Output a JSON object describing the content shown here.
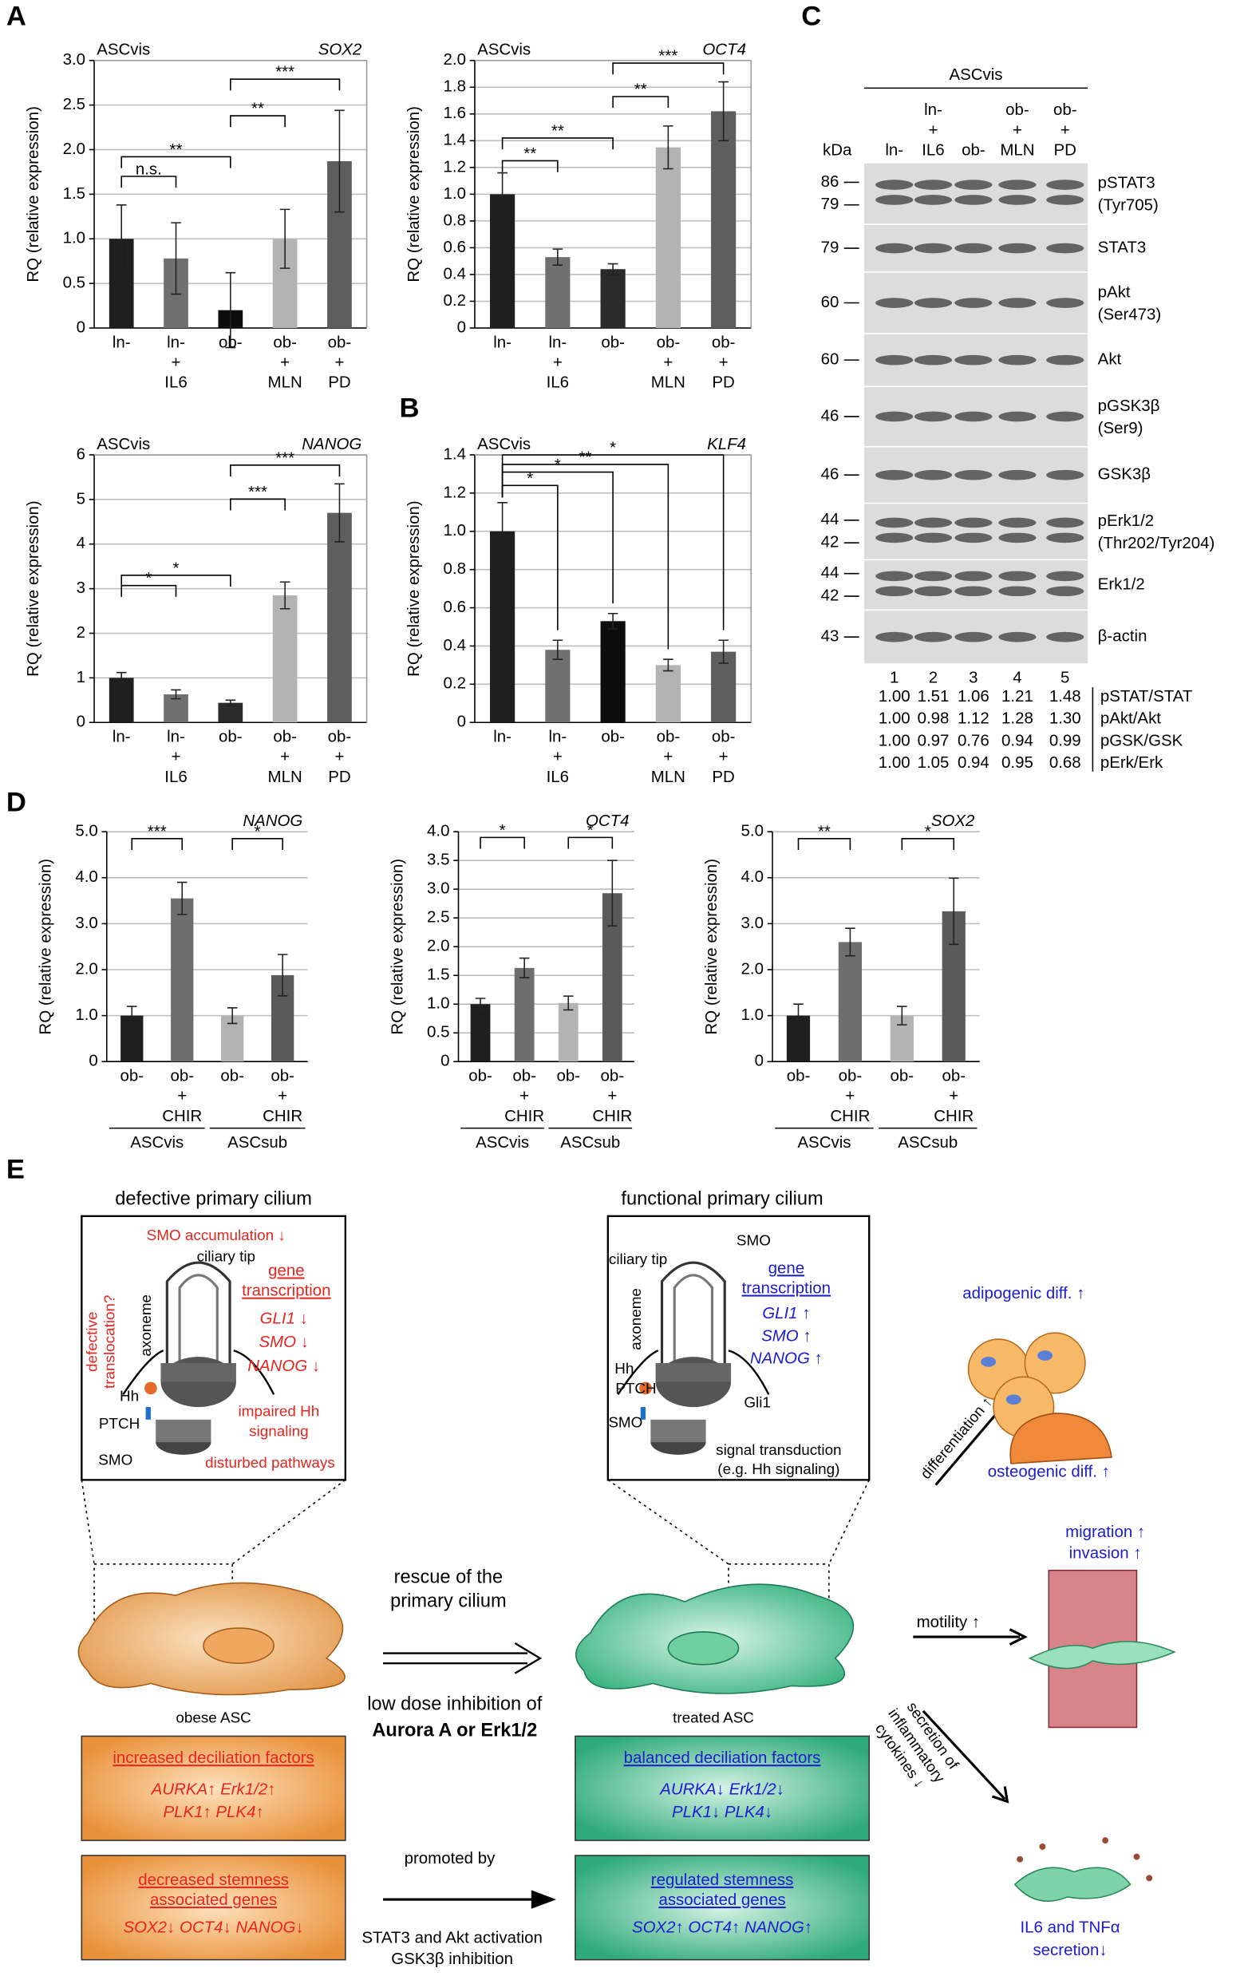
{
  "panel_labels": [
    "A",
    "B",
    "C",
    "D",
    "E"
  ],
  "chart_data": [
    {
      "type": "bar",
      "label": "ASCvis",
      "title": "SOX2",
      "y_label": "RQ (relative expression)",
      "categories": [
        [
          "ln-"
        ],
        [
          "ln-",
          "+",
          "IL6"
        ],
        [
          "ob-"
        ],
        [
          "ob-",
          "+",
          "MLN"
        ],
        [
          "ob-",
          "+",
          "PD"
        ]
      ],
      "values": [
        1.0,
        0.78,
        0.2,
        1.0,
        1.87
      ],
      "errors": [
        0.38,
        0.4,
        0.42,
        0.33,
        0.57
      ],
      "colors": [
        "#1f1f1f",
        "#707070",
        "#0d0d0d",
        "#b3b3b3",
        "#5e5e5e"
      ],
      "ylim": [
        0,
        3
      ],
      "yticks": [
        0,
        0.5,
        {
          "value": 1,
          "label": "1.0"
        },
        1.5,
        {
          "value": 2,
          "label": "2.0"
        },
        2.5,
        {
          "value": 3,
          "label": "3.0"
        }
      ],
      "grid": true,
      "brackets": [
        {
          "label": "n.s.",
          "from": 0,
          "to": 1,
          "y": 1.7
        },
        {
          "label": "**",
          "from": 0,
          "to": 2,
          "y": 1.92
        },
        {
          "label": "**",
          "from": 2,
          "to": 3,
          "y": 2.38
        },
        {
          "label": "***",
          "from": 2,
          "to": 4,
          "y": 2.79
        }
      ]
    },
    {
      "type": "bar",
      "label": "ASCvis",
      "title": "OCT4",
      "y_label": "RQ (relative expression)",
      "categories": [
        [
          "ln-"
        ],
        [
          "ln-",
          "+",
          "IL6"
        ],
        [
          "ob-"
        ],
        [
          "ob-",
          "+",
          "MLN"
        ],
        [
          "ob-",
          "+",
          "PD"
        ]
      ],
      "values": [
        1.0,
        0.53,
        0.44,
        1.35,
        1.62
      ],
      "errors": [
        0.16,
        0.06,
        0.04,
        0.16,
        0.22
      ],
      "colors": [
        "#1f1f1f",
        "#707070",
        "#2a2a2a",
        "#b3b3b3",
        "#5e5e5e"
      ],
      "ylim": [
        0,
        2
      ],
      "yticks": [
        0,
        0.2,
        0.4,
        0.6,
        0.8,
        {
          "value": 1,
          "label": "1.0"
        },
        1.2,
        1.4,
        1.6,
        1.8,
        {
          "value": 2,
          "label": "2.0"
        }
      ],
      "grid": true,
      "brackets": [
        {
          "label": "**",
          "from": 0,
          "to": 1,
          "y": 1.25
        },
        {
          "label": "**",
          "from": 0,
          "to": 2,
          "y": 1.42
        },
        {
          "label": "**",
          "from": 2,
          "to": 3,
          "y": 1.73
        },
        {
          "label": "***",
          "from": 2,
          "to": 4,
          "y": 1.98
        }
      ]
    },
    {
      "type": "bar",
      "label": "ASCvis",
      "title": "NANOG",
      "y_label": "RQ (relative expression)",
      "categories": [
        [
          "ln-"
        ],
        [
          "ln-",
          "+",
          "IL6"
        ],
        [
          "ob-"
        ],
        [
          "ob-",
          "+",
          "MLN"
        ],
        [
          "ob-",
          "+",
          "PD"
        ]
      ],
      "values": [
        1.0,
        0.63,
        0.44,
        2.85,
        4.7
      ],
      "errors": [
        0.12,
        0.1,
        0.06,
        0.3,
        0.65
      ],
      "colors": [
        "#1f1f1f",
        "#707070",
        "#2a2a2a",
        "#b3b3b3",
        "#5e5e5e"
      ],
      "ylim": [
        0,
        6
      ],
      "yticks": [
        0,
        1,
        2,
        3,
        4,
        5,
        6
      ],
      "grid": true,
      "brackets": [
        {
          "label": "*",
          "from": 0,
          "to": 1,
          "y": 3.07
        },
        {
          "label": "*",
          "from": 0,
          "to": 2,
          "y": 3.3
        },
        {
          "label": "***",
          "from": 2,
          "to": 3,
          "y": 5.01
        },
        {
          "label": "***",
          "from": 2,
          "to": 4,
          "y": 5.77
        }
      ]
    },
    {
      "type": "bar",
      "label": "ASCvis",
      "title": "KLF4",
      "y_label": "RQ (relative expression)",
      "categories": [
        [
          "ln-"
        ],
        [
          "ln-",
          "+",
          "IL6"
        ],
        [
          "ob-"
        ],
        [
          "ob-",
          "+",
          "MLN"
        ],
        [
          "ob-",
          "+",
          "PD"
        ]
      ],
      "values": [
        1.0,
        0.38,
        0.53,
        0.3,
        0.37
      ],
      "errors": [
        0.15,
        0.05,
        0.04,
        0.03,
        0.06
      ],
      "colors": [
        "#1f1f1f",
        "#707070",
        "#0d0d0d",
        "#b3b3b3",
        "#5e5e5e"
      ],
      "ylim": [
        0,
        1.4
      ],
      "yticks": [
        0,
        0.2,
        0.4,
        0.6,
        0.8,
        {
          "value": 1,
          "label": "1.0"
        },
        1.2,
        1.4
      ],
      "grid": true,
      "brackets": [
        {
          "label": "*",
          "from": 0,
          "to": 1,
          "y": 1.24
        },
        {
          "label": "*",
          "from": 0,
          "to": 2,
          "y": 1.31
        },
        {
          "label": "**",
          "from": 0,
          "to": 3,
          "y": 1.35
        },
        {
          "label": "*",
          "from": 0,
          "to": 4,
          "y": 1.4
        }
      ]
    },
    {
      "type": "bar",
      "title": "NANOG",
      "y_label": "RQ (relative expression)",
      "categories": [
        [
          "ob-"
        ],
        [
          "ob-",
          "+",
          "CHIR"
        ],
        [
          "ob-"
        ],
        [
          "ob-",
          "+",
          "CHIR"
        ]
      ],
      "groups": [
        "ASCvis",
        "ASCsub"
      ],
      "values": [
        1.0,
        3.55,
        1.0,
        1.88
      ],
      "errors": [
        0.2,
        0.35,
        0.17,
        0.45
      ],
      "colors": [
        "#1f1f1f",
        "#6e6e6e",
        "#b3b3b3",
        "#5a5a5a"
      ],
      "ylim": [
        0,
        5
      ],
      "yticks": [
        0,
        {
          "value": 1,
          "label": "1.0"
        },
        {
          "value": 2,
          "label": "2.0"
        },
        {
          "value": 3,
          "label": "3.0"
        },
        {
          "value": 4,
          "label": "4.0"
        },
        {
          "value": 5,
          "label": "5.0"
        }
      ],
      "grid": true,
      "brackets": [
        {
          "label": "***",
          "from": 0,
          "to": 1,
          "y": 4.85
        },
        {
          "label": "*",
          "from": 2,
          "to": 3,
          "y": 4.85
        }
      ]
    },
    {
      "type": "bar",
      "title": "OCT4",
      "y_label": "RQ (relative expression)",
      "categories": [
        [
          "ob-"
        ],
        [
          "ob-",
          "+",
          "CHIR"
        ],
        [
          "ob-"
        ],
        [
          "ob-",
          "+",
          "CHIR"
        ]
      ],
      "groups": [
        "ASCvis",
        "ASCsub"
      ],
      "values": [
        1.0,
        1.63,
        1.02,
        2.93
      ],
      "errors": [
        0.1,
        0.17,
        0.12,
        0.57
      ],
      "colors": [
        "#1f1f1f",
        "#6e6e6e",
        "#b3b3b3",
        "#5a5a5a"
      ],
      "ylim": [
        0,
        4
      ],
      "yticks": [
        0,
        0.5,
        {
          "value": 1,
          "label": "1.0"
        },
        1.5,
        {
          "value": 2,
          "label": "2.0"
        },
        2.5,
        {
          "value": 3,
          "label": "3.0"
        },
        3.5,
        {
          "value": 4,
          "label": "4.0"
        }
      ],
      "grid": true,
      "brackets": [
        {
          "label": "*",
          "from": 0,
          "to": 1,
          "y": 3.9
        },
        {
          "label": "*",
          "from": 2,
          "to": 3,
          "y": 3.9
        }
      ]
    },
    {
      "type": "bar",
      "title": "SOX2",
      "y_label": "RQ (relative expression)",
      "categories": [
        [
          "ob-"
        ],
        [
          "ob-",
          "+",
          "CHIR"
        ],
        [
          "ob-"
        ],
        [
          "ob-",
          "+",
          "CHIR"
        ]
      ],
      "groups": [
        "ASCvis",
        "ASCsub"
      ],
      "values": [
        1.0,
        2.6,
        1.0,
        3.27
      ],
      "errors": [
        0.25,
        0.3,
        0.2,
        0.72
      ],
      "colors": [
        "#1f1f1f",
        "#6e6e6e",
        "#b3b3b3",
        "#5a5a5a"
      ],
      "ylim": [
        0,
        5
      ],
      "yticks": [
        0,
        {
          "value": 1,
          "label": "1.0"
        },
        {
          "value": 2,
          "label": "2.0"
        },
        {
          "value": 3,
          "label": "3.0"
        },
        {
          "value": 4,
          "label": "4.0"
        },
        {
          "value": 5,
          "label": "5.0"
        }
      ],
      "grid": true,
      "brackets": [
        {
          "label": "**",
          "from": 0,
          "to": 1,
          "y": 4.85
        },
        {
          "label": "*",
          "from": 2,
          "to": 3,
          "y": 4.85
        }
      ]
    }
  ],
  "blot": {
    "title": "ASCvis",
    "kda_label": "kDa",
    "lanes": [
      [
        "ln-"
      ],
      [
        "ln-",
        "+",
        "IL6"
      ],
      [
        "ob-"
      ],
      [
        "ob-",
        "+",
        "MLN"
      ],
      [
        "ob-",
        "+",
        "PD"
      ]
    ],
    "rows": [
      {
        "markers": [
          "86",
          "79"
        ],
        "label": [
          "pSTAT3",
          "(Tyr705)"
        ]
      },
      {
        "markers": [
          "79"
        ],
        "label": [
          "STAT3"
        ]
      },
      {
        "markers": [
          "60"
        ],
        "label": [
          "pAkt",
          "(Ser473)"
        ]
      },
      {
        "markers": [
          "60"
        ],
        "label": [
          "Akt"
        ]
      },
      {
        "markers": [
          "46"
        ],
        "label": [
          "pGSK3β",
          "(Ser9)"
        ]
      },
      {
        "markers": [
          "46"
        ],
        "label": [
          "GSK3β"
        ]
      },
      {
        "markers": [
          "44",
          "42"
        ],
        "label": [
          "pErk1/2",
          "(Thr202/Tyr204)"
        ]
      },
      {
        "markers": [
          "44",
          "42"
        ],
        "label": [
          "Erk1/2"
        ]
      },
      {
        "markers": [
          "43"
        ],
        "label": [
          "β-actin"
        ]
      }
    ],
    "lane_numbers": [
      "1",
      "2",
      "3",
      "4",
      "5"
    ],
    "ratios": [
      {
        "label": "pSTAT/STAT",
        "values": [
          "1.00",
          "1.51",
          "1.06",
          "1.21",
          "1.48"
        ]
      },
      {
        "label": "pAkt/Akt",
        "values": [
          "1.00",
          "0.98",
          "1.12",
          "1.28",
          "1.30"
        ]
      },
      {
        "label": "pGSK/GSK",
        "values": [
          "1.00",
          "0.97",
          "0.76",
          "0.94",
          "0.99"
        ]
      },
      {
        "label": "pErk/Erk",
        "values": [
          "1.00",
          "1.05",
          "0.94",
          "0.95",
          "0.68"
        ]
      }
    ]
  },
  "diagram": {
    "left": {
      "title": "defective primary cilium",
      "smo_acc": "SMO accumulation ↓",
      "tip": "ciliary tip",
      "gene": [
        "gene",
        "transcription"
      ],
      "genes": [
        "GLI1 ↓",
        "SMO ↓",
        "NANOG ↓"
      ],
      "axoneme": "axoneme",
      "translocation": [
        "defective",
        "translocation?"
      ],
      "hh": "Hh",
      "ptch": "PTCH",
      "smo": "SMO",
      "impaired": [
        "impaired Hh",
        "signaling"
      ],
      "disturbed": "disturbed pathways",
      "cell": "obese ASC",
      "box1": {
        "title": "increased deciliation factors",
        "lines": [
          "AURKA↑ Erk1/2↑",
          "PLK1↑ PLK4↑"
        ]
      },
      "box2": {
        "title": [
          "decreased stemness",
          "associated genes"
        ],
        "lines": [
          "SOX2↓ OCT4↓ NANOG↓"
        ]
      }
    },
    "right": {
      "title": "functional primary cilium",
      "tip": "ciliary tip",
      "smo_top": "SMO",
      "gene": [
        "gene",
        "transcription"
      ],
      "genes": [
        "GLI1 ↑",
        "SMO ↑",
        "NANOG ↑"
      ],
      "axoneme": "axoneme",
      "hh": "Hh",
      "ptch": "PTCH",
      "smo": "SMO",
      "gli1": "Gli1",
      "signal": [
        "signal transduction",
        "(e.g. Hh signaling)"
      ],
      "cell": "treated ASC",
      "box1": {
        "title": "balanced deciliation factors",
        "lines": [
          "AURKA↓ Erk1/2↓",
          "PLK1↓ PLK4↓"
        ]
      },
      "box2": {
        "title": [
          "regulated stemness",
          "associated genes"
        ],
        "lines": [
          "SOX2↑ OCT4↑ NANOG↑"
        ]
      }
    },
    "middle": {
      "rescue": [
        "rescue of the",
        "primary cilium"
      ],
      "inhibition": [
        "low dose inhibition of",
        "Aurora A or Erk1/2"
      ],
      "promoted": "promoted by",
      "activation": [
        "STAT3 and Akt activation",
        "GSK3β inhibition"
      ]
    },
    "outcomes": {
      "adipo": "adipogenic diff. ↑",
      "differentiation": "differentiation ↑",
      "osteo": "osteogenic diff. ↑",
      "migration": [
        "migration ↑",
        "invasion ↑"
      ],
      "motility": "motility ↑",
      "secretion": [
        "secretion of",
        "inflammatory",
        "cytokines ↓"
      ],
      "il6": [
        "IL6 and TNFα",
        "secretion↓"
      ]
    }
  }
}
